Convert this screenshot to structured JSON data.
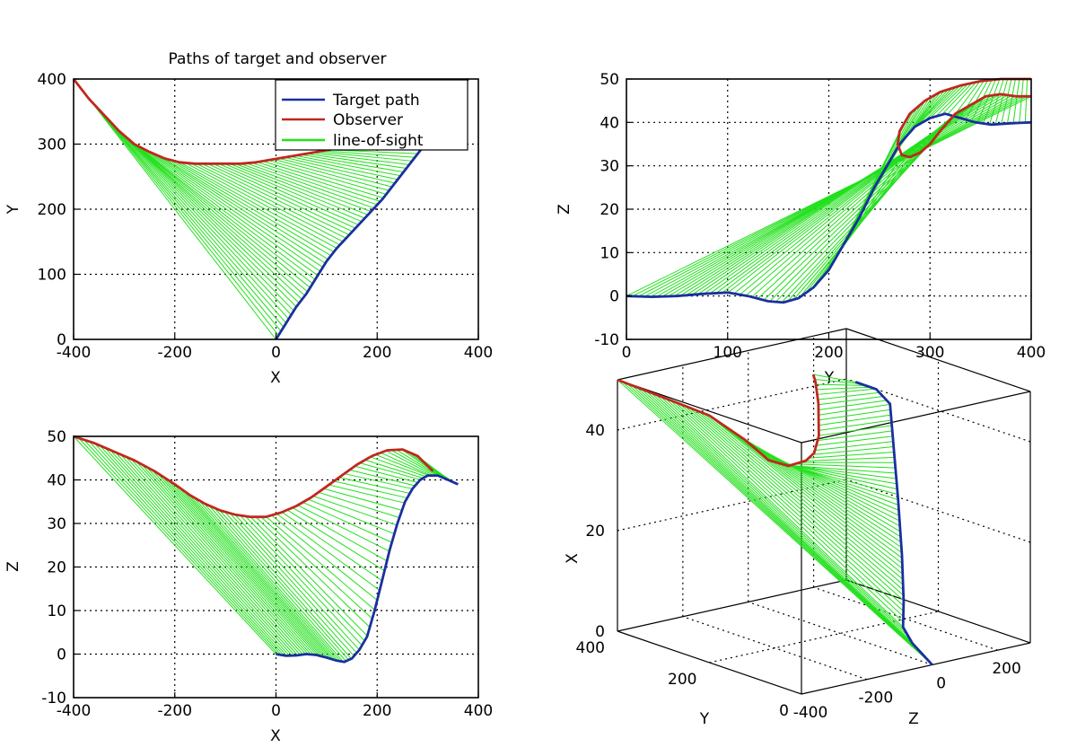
{
  "chart_data": [
    {
      "type": "line",
      "title": "Paths of target and observer",
      "xlabel": "X",
      "ylabel": "Y",
      "xlim": [
        -400,
        400
      ],
      "ylim": [
        0,
        400
      ],
      "xticks": [
        "-400",
        "-200",
        "0",
        "200",
        "400"
      ],
      "yticks": [
        "0",
        "100",
        "200",
        "300",
        "400"
      ],
      "grid": true,
      "legend": {
        "position": "top-right",
        "entries": [
          "Target path",
          "Observer",
          "line-of-sight"
        ]
      },
      "series": [
        {
          "name": "Target path",
          "color": "#1a2fa0",
          "points": [
            [
              0,
              0
            ],
            [
              20,
              25
            ],
            [
              40,
              50
            ],
            [
              60,
              70
            ],
            [
              80,
              95
            ],
            [
              100,
              120
            ],
            [
              120,
              140
            ],
            [
              150,
              165
            ],
            [
              180,
              190
            ],
            [
              210,
              215
            ],
            [
              240,
              245
            ],
            [
              270,
              275
            ],
            [
              300,
              305
            ],
            [
              330,
              335
            ],
            [
              360,
              380
            ],
            [
              380,
              400
            ]
          ]
        },
        {
          "name": "Observer",
          "color": "#c0281e",
          "points": [
            [
              -400,
              400
            ],
            [
              -370,
              370
            ],
            [
              -340,
              345
            ],
            [
              -310,
              320
            ],
            [
              -280,
              300
            ],
            [
              -250,
              288
            ],
            [
              -220,
              278
            ],
            [
              -190,
              272
            ],
            [
              -160,
              270
            ],
            [
              -130,
              270
            ],
            [
              -100,
              270
            ],
            [
              -70,
              270
            ],
            [
              -40,
              272
            ],
            [
              -10,
              276
            ],
            [
              20,
              280
            ],
            [
              50,
              284
            ],
            [
              80,
              288
            ],
            [
              110,
              292
            ],
            [
              140,
              296
            ],
            [
              170,
              300
            ],
            [
              200,
              303
            ],
            [
              230,
              305
            ],
            [
              260,
              307
            ],
            [
              290,
              310
            ],
            [
              310,
              312
            ]
          ]
        },
        {
          "name": "line-of-sight",
          "color": "#22e01c"
        }
      ]
    },
    {
      "type": "line",
      "title": "",
      "xlabel": "Y",
      "ylabel": "Z",
      "xlim": [
        0,
        400
      ],
      "ylim": [
        -10,
        50
      ],
      "xticks": [
        "0",
        "100",
        "200",
        "300",
        "400"
      ],
      "yticks": [
        "-10",
        "0",
        "10",
        "20",
        "30",
        "40",
        "50"
      ],
      "grid": true,
      "series": [
        {
          "name": "Target path",
          "color": "#1a2fa0",
          "points": [
            [
              0,
              0
            ],
            [
              25,
              -0.2
            ],
            [
              50,
              0
            ],
            [
              75,
              0.5
            ],
            [
              100,
              0.8
            ],
            [
              120,
              0
            ],
            [
              140,
              -1.2
            ],
            [
              155,
              -1.5
            ],
            [
              170,
              -0.5
            ],
            [
              185,
              2
            ],
            [
              200,
              6
            ],
            [
              215,
              12
            ],
            [
              230,
              18
            ],
            [
              245,
              25
            ],
            [
              260,
              31
            ],
            [
              270,
              35
            ],
            [
              285,
              39
            ],
            [
              300,
              41
            ],
            [
              315,
              42
            ],
            [
              330,
              41
            ],
            [
              345,
              40
            ],
            [
              360,
              39.5
            ],
            [
              380,
              39.8
            ],
            [
              400,
              40
            ]
          ]
        },
        {
          "name": "Observer",
          "color": "#c0281e",
          "points": [
            [
              400,
              46
            ],
            [
              385,
              46
            ],
            [
              370,
              46.5
            ],
            [
              355,
              46
            ],
            [
              340,
              44
            ],
            [
              325,
              42
            ],
            [
              310,
              38
            ],
            [
              300,
              35
            ],
            [
              290,
              33
            ],
            [
              280,
              32
            ],
            [
              272,
              32.5
            ],
            [
              268,
              35
            ],
            [
              270,
              38
            ],
            [
              280,
              42
            ],
            [
              295,
              45
            ],
            [
              310,
              47
            ],
            [
              330,
              48.5
            ],
            [
              350,
              49.5
            ],
            [
              370,
              50
            ],
            [
              400,
              50
            ]
          ]
        },
        {
          "name": "line-of-sight",
          "color": "#22e01c"
        }
      ]
    },
    {
      "type": "line",
      "title": "",
      "xlabel": "X",
      "ylabel": "Z",
      "xlim": [
        -400,
        400
      ],
      "ylim": [
        -10,
        50
      ],
      "xticks": [
        "-400",
        "-200",
        "0",
        "200",
        "400"
      ],
      "yticks": [
        "-10",
        "0",
        "10",
        "20",
        "30",
        "40",
        "50"
      ],
      "grid": true,
      "series": [
        {
          "name": "Target path",
          "color": "#1a2fa0",
          "points": [
            [
              0,
              0
            ],
            [
              20,
              -0.4
            ],
            [
              40,
              -0.3
            ],
            [
              60,
              0
            ],
            [
              80,
              -0.2
            ],
            [
              100,
              -0.8
            ],
            [
              120,
              -1.5
            ],
            [
              135,
              -1.8
            ],
            [
              150,
              -1
            ],
            [
              165,
              1
            ],
            [
              180,
              4
            ],
            [
              195,
              10
            ],
            [
              210,
              17
            ],
            [
              225,
              24
            ],
            [
              240,
              30
            ],
            [
              255,
              35
            ],
            [
              270,
              38
            ],
            [
              285,
              40
            ],
            [
              300,
              41
            ],
            [
              320,
              41
            ],
            [
              340,
              40
            ],
            [
              360,
              39
            ]
          ]
        },
        {
          "name": "Observer",
          "color": "#c0281e",
          "points": [
            [
              -400,
              50
            ],
            [
              -360,
              48.5
            ],
            [
              -320,
              46.5
            ],
            [
              -280,
              44.5
            ],
            [
              -240,
              42
            ],
            [
              -200,
              39
            ],
            [
              -170,
              36.5
            ],
            [
              -140,
              34.5
            ],
            [
              -110,
              33
            ],
            [
              -80,
              32
            ],
            [
              -50,
              31.5
            ],
            [
              -20,
              31.5
            ],
            [
              10,
              32.5
            ],
            [
              40,
              34
            ],
            [
              70,
              36
            ],
            [
              100,
              38.5
            ],
            [
              130,
              41
            ],
            [
              160,
              43.5
            ],
            [
              190,
              45.5
            ],
            [
              220,
              46.8
            ],
            [
              250,
              47
            ],
            [
              280,
              45.5
            ],
            [
              310,
              42
            ]
          ]
        },
        {
          "name": "line-of-sight",
          "color": "#22e01c"
        }
      ]
    },
    {
      "type": "line",
      "title": "",
      "xlabel": "X",
      "ylabel": "Z",
      "zlabel": "Y",
      "projection": "3d",
      "xticks": [
        "-400",
        "-200",
        "0",
        "200"
      ],
      "yticks": [
        "0",
        "200",
        "400"
      ],
      "zticks": [
        "0",
        "20",
        "40"
      ],
      "grid": true,
      "series": [
        {
          "name": "Target path",
          "color": "#1a2fa0"
        },
        {
          "name": "Observer",
          "color": "#c0281e"
        },
        {
          "name": "line-of-sight",
          "color": "#22e01c"
        }
      ]
    }
  ]
}
